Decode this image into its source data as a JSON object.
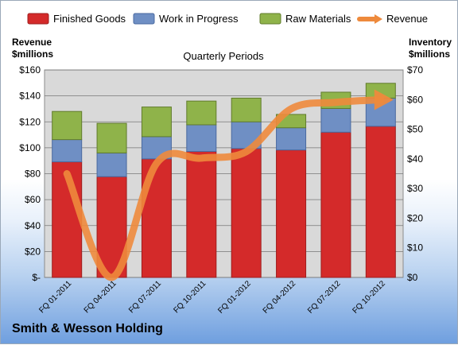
{
  "company": "Smith & Wesson Holding",
  "colors": {
    "finished_goods": "#d42a2a",
    "work_in_progress": "#6f8fc4",
    "raw_materials": "#8fb34a",
    "revenue": "#ee8a3c",
    "plot_bg": "#d9d9d9",
    "grid": "#777777"
  },
  "chart_data": {
    "type": "bar",
    "subtitle": "Quarterly Periods",
    "stacked": true,
    "categories": [
      "FQ 01-2011",
      "FQ 04-2011",
      "FQ 07-2011",
      "FQ 10-2011",
      "FQ 01-2012",
      "FQ 04-2012",
      "FQ 07-2012",
      "FQ 10-2012"
    ],
    "left_axis": {
      "title_line1": "Revenue",
      "title_line2": "$millions",
      "ylim": [
        0,
        160
      ],
      "ticks": [
        "$-",
        "$20",
        "$40",
        "$60",
        "$80",
        "$100",
        "$120",
        "$140",
        "$160"
      ]
    },
    "right_axis": {
      "title_line1": "Inventory",
      "title_line2": "$millions",
      "ylim": [
        0,
        70
      ],
      "ticks": [
        "$0",
        "$10",
        "$20",
        "$30",
        "$40",
        "$50",
        "$60",
        "$70"
      ]
    },
    "series": [
      {
        "name": "Finished Goods",
        "axis": "right",
        "values": [
          39,
          34,
          40,
          42.5,
          43.5,
          43,
          49,
          51
        ]
      },
      {
        "name": "Work in Progress",
        "axis": "right",
        "values": [
          7.5,
          8,
          7.5,
          9,
          9,
          7.5,
          8,
          9.5
        ]
      },
      {
        "name": "Raw Materials",
        "axis": "right",
        "values": [
          9.5,
          10,
          10,
          8,
          8,
          4.5,
          5.5,
          5
        ]
      },
      {
        "name": "Revenue",
        "axis": "left",
        "type": "line",
        "values": [
          80,
          0,
          88,
          92,
          97,
          130,
          135,
          137
        ]
      }
    ],
    "grid": true,
    "legend": "top"
  }
}
